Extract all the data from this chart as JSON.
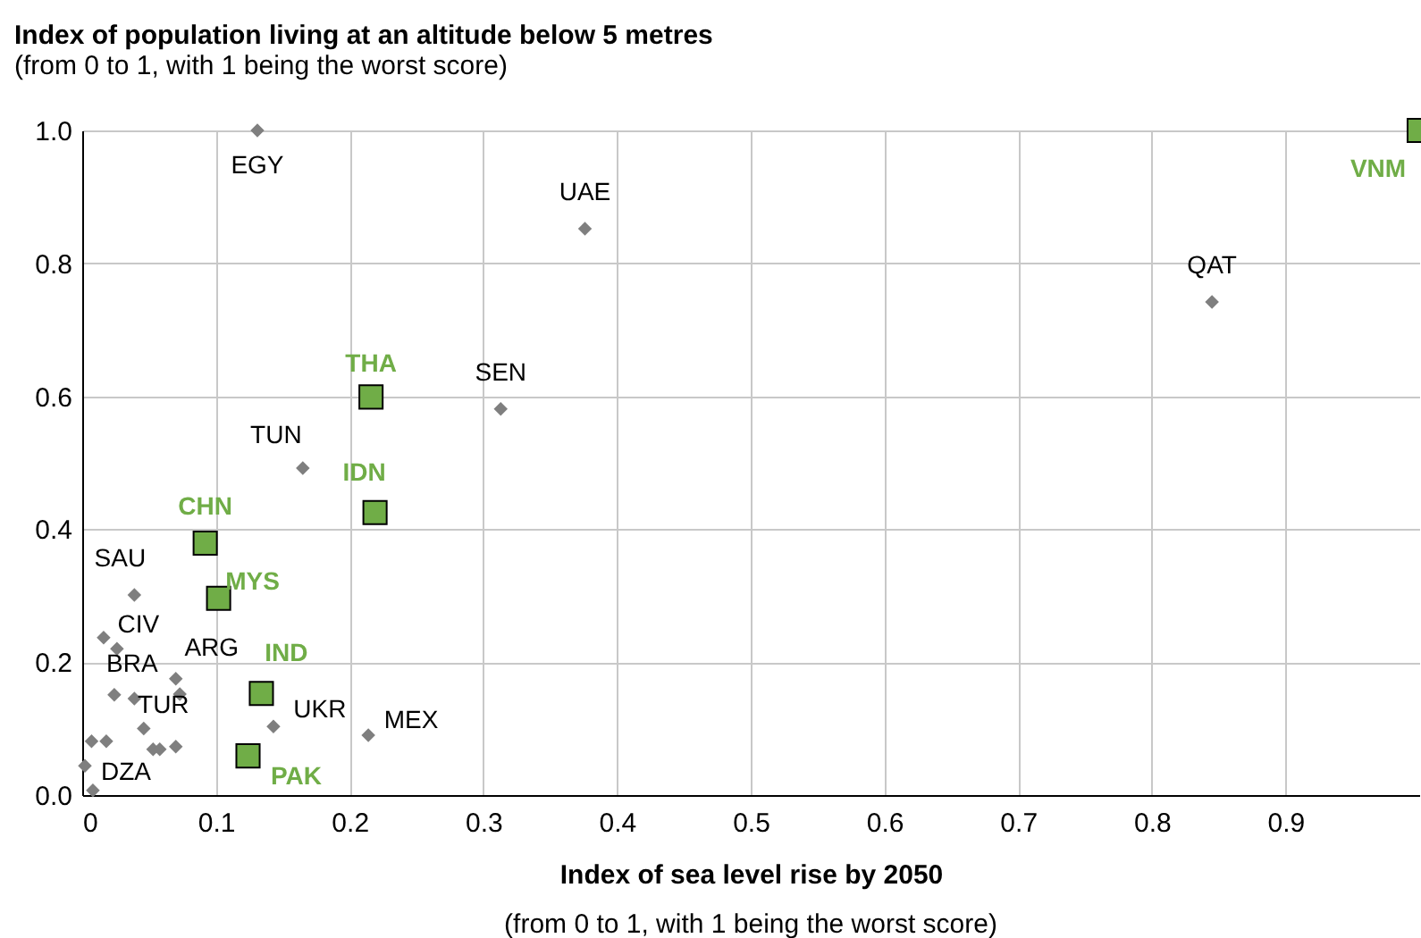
{
  "chart_data": {
    "type": "scatter",
    "title": "Index of population living at an altitude below 5 metres",
    "subtitle": "(from 0 to 1, with 1 being the worst score)",
    "xlabel": "Index of sea level rise by 2050",
    "xlim": [
      0,
      1
    ],
    "xticks": [
      0,
      0.1,
      0.2,
      0.3,
      0.4,
      0.5,
      0.6,
      0.7,
      0.8,
      0.9
    ],
    "ylim": [
      0,
      1
    ],
    "yticks": [
      {
        "value": 0,
        "label": "0.0"
      },
      {
        "value": 0.2,
        "label": "0.2"
      },
      {
        "value": 0.4,
        "label": "0.4"
      },
      {
        "value": 0.6,
        "label": "0.6"
      },
      {
        "value": 0.8,
        "label": "0.8"
      },
      {
        "value": 1,
        "label": "1.0"
      }
    ],
    "grid": true,
    "series": [
      {
        "color": "#7f7f7f",
        "marker": "diamond",
        "x": [
          0.131,
          0.376,
          0.845,
          0.313,
          0.165,
          0.039,
          0.016,
          0.026,
          0.07,
          0.073,
          0.024,
          0.039,
          0.046,
          0.053,
          0.058,
          0.07,
          0.007,
          0.018,
          0.002,
          0.008,
          0.143,
          0.214
        ],
        "values": [
          1.0,
          0.852,
          0.742,
          0.581,
          0.492,
          0.301,
          0.237,
          0.22,
          0.175,
          0.152,
          0.151,
          0.145,
          0.1,
          0.069,
          0.069,
          0.073,
          0.081,
          0.081,
          0.044,
          0.007,
          0.103,
          0.09
        ]
      },
      {
        "color": "#70ad47",
        "marker": "square",
        "x": [
          0.216,
          0.219,
          0.092,
          0.102,
          0.134,
          0.124,
          1.0
        ],
        "values": [
          0.599,
          0.425,
          0.379,
          0.296,
          0.153,
          0.059,
          1.0
        ]
      }
    ],
    "annotations": [
      {
        "text": "EGY",
        "x": 0.131,
        "y": 1.0
      },
      {
        "text": "UAE",
        "x": 0.376,
        "y": 0.852
      },
      {
        "text": "QAT",
        "x": 0.845,
        "y": 0.742
      },
      {
        "text": "SEN",
        "x": 0.313,
        "y": 0.581
      },
      {
        "text": "TUN",
        "x": 0.165,
        "y": 0.492
      },
      {
        "text": "SAU",
        "x": 0.039,
        "y": 0.301
      },
      {
        "text": "CIV",
        "x": 0.026,
        "y": 0.22
      },
      {
        "text": "ARG",
        "x": 0.07,
        "y": 0.175
      },
      {
        "text": "BRA",
        "x": 0.024,
        "y": 0.151
      },
      {
        "text": "TUR",
        "x": 0.046,
        "y": 0.1
      },
      {
        "text": "DZA",
        "x": 0.002,
        "y": 0.044
      },
      {
        "text": "UKR",
        "x": 0.143,
        "y": 0.103
      },
      {
        "text": "MEX",
        "x": 0.214,
        "y": 0.09
      },
      {
        "text": "THA",
        "x": 0.216,
        "y": 0.599
      },
      {
        "text": "IDN",
        "x": 0.219,
        "y": 0.425
      },
      {
        "text": "CHN",
        "x": 0.092,
        "y": 0.379
      },
      {
        "text": "MYS",
        "x": 0.102,
        "y": 0.296
      },
      {
        "text": "IND",
        "x": 0.134,
        "y": 0.153
      },
      {
        "text": "PAK",
        "x": 0.124,
        "y": 0.059
      },
      {
        "text": "VNM",
        "x": 1.0,
        "y": 1.0
      },
      "(from 0 to 1, with 1 being the worst score)"
    ]
  }
}
